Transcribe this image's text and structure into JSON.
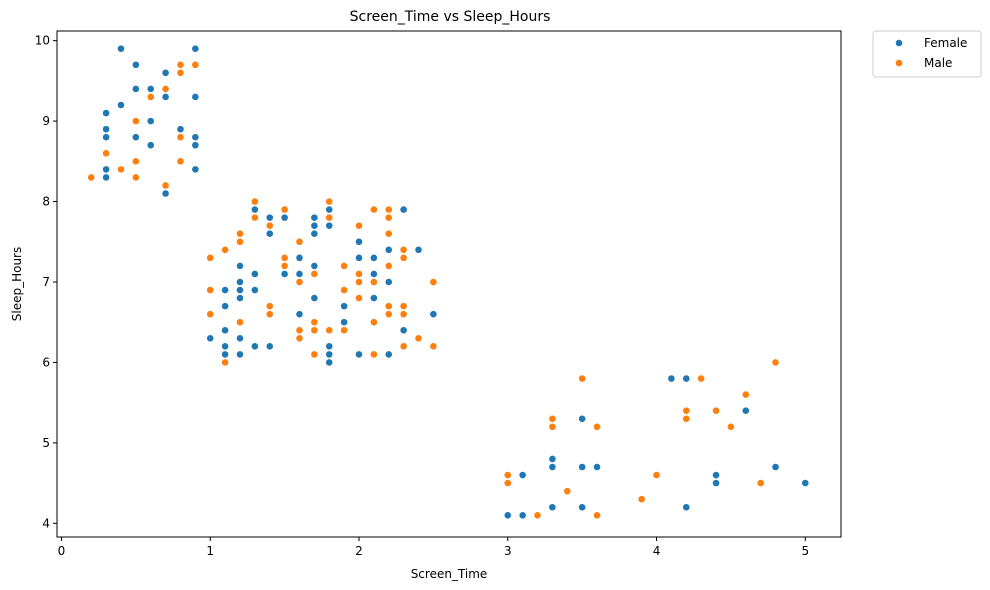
{
  "chart_data": {
    "type": "scatter",
    "title": "Screen_Time vs Sleep_Hours",
    "xlabel": "Screen_Time",
    "ylabel": "Sleep_Hours",
    "xlim": [
      -0.03,
      5.24
    ],
    "ylim": [
      3.83,
      10.12
    ],
    "xticks": [
      0,
      1,
      2,
      3,
      4,
      5
    ],
    "yticks": [
      4,
      5,
      6,
      7,
      8,
      9,
      10
    ],
    "grid": false,
    "legend_position": "outside-top-right",
    "series": [
      {
        "name": "Female",
        "color": "#1f77b4",
        "points": [
          [
            0.3,
            8.3
          ],
          [
            0.3,
            8.4
          ],
          [
            0.3,
            8.8
          ],
          [
            0.3,
            8.9
          ],
          [
            0.3,
            9.1
          ],
          [
            0.4,
            9.2
          ],
          [
            0.4,
            9.9
          ],
          [
            0.5,
            8.8
          ],
          [
            0.5,
            9.4
          ],
          [
            0.5,
            9.7
          ],
          [
            0.6,
            8.7
          ],
          [
            0.6,
            9.0
          ],
          [
            0.6,
            9.4
          ],
          [
            0.7,
            8.1
          ],
          [
            0.7,
            9.3
          ],
          [
            0.7,
            9.6
          ],
          [
            0.8,
            8.9
          ],
          [
            0.9,
            8.4
          ],
          [
            0.9,
            8.7
          ],
          [
            0.9,
            8.8
          ],
          [
            0.9,
            9.3
          ],
          [
            0.9,
            9.9
          ],
          [
            1.0,
            6.3
          ],
          [
            1.1,
            6.1
          ],
          [
            1.1,
            6.2
          ],
          [
            1.1,
            6.4
          ],
          [
            1.1,
            6.7
          ],
          [
            1.1,
            6.9
          ],
          [
            1.2,
            6.1
          ],
          [
            1.2,
            6.3
          ],
          [
            1.2,
            6.8
          ],
          [
            1.2,
            6.9
          ],
          [
            1.2,
            7.0
          ],
          [
            1.2,
            7.2
          ],
          [
            1.3,
            6.2
          ],
          [
            1.3,
            6.9
          ],
          [
            1.3,
            7.1
          ],
          [
            1.3,
            7.9
          ],
          [
            1.4,
            6.2
          ],
          [
            1.4,
            7.6
          ],
          [
            1.4,
            7.8
          ],
          [
            1.5,
            7.1
          ],
          [
            1.5,
            7.8
          ],
          [
            1.6,
            6.6
          ],
          [
            1.6,
            7.1
          ],
          [
            1.6,
            7.3
          ],
          [
            1.7,
            6.8
          ],
          [
            1.7,
            7.2
          ],
          [
            1.7,
            7.6
          ],
          [
            1.7,
            7.7
          ],
          [
            1.7,
            7.8
          ],
          [
            1.8,
            6.0
          ],
          [
            1.8,
            6.1
          ],
          [
            1.8,
            6.2
          ],
          [
            1.8,
            7.7
          ],
          [
            1.8,
            7.9
          ],
          [
            1.9,
            6.5
          ],
          [
            1.9,
            6.7
          ],
          [
            2.0,
            6.1
          ],
          [
            2.0,
            7.1
          ],
          [
            2.0,
            7.3
          ],
          [
            2.0,
            7.5
          ],
          [
            2.1,
            6.8
          ],
          [
            2.1,
            7.1
          ],
          [
            2.1,
            7.3
          ],
          [
            2.2,
            6.1
          ],
          [
            2.2,
            6.6
          ],
          [
            2.2,
            7.0
          ],
          [
            2.2,
            7.4
          ],
          [
            2.3,
            6.4
          ],
          [
            2.3,
            7.9
          ],
          [
            2.4,
            7.4
          ],
          [
            2.5,
            6.6
          ],
          [
            3.0,
            4.1
          ],
          [
            3.1,
            4.1
          ],
          [
            3.1,
            4.6
          ],
          [
            3.3,
            4.2
          ],
          [
            3.3,
            4.7
          ],
          [
            3.3,
            4.8
          ],
          [
            3.5,
            4.2
          ],
          [
            3.5,
            4.7
          ],
          [
            3.5,
            5.3
          ],
          [
            3.6,
            4.7
          ],
          [
            4.1,
            5.8
          ],
          [
            4.2,
            4.2
          ],
          [
            4.2,
            5.8
          ],
          [
            4.4,
            4.5
          ],
          [
            4.4,
            4.6
          ],
          [
            4.6,
            5.4
          ],
          [
            4.8,
            4.7
          ],
          [
            5.0,
            4.5
          ]
        ]
      },
      {
        "name": "Male",
        "color": "#ff7f0e",
        "points": [
          [
            0.2,
            8.3
          ],
          [
            0.3,
            8.6
          ],
          [
            0.4,
            8.4
          ],
          [
            0.5,
            8.3
          ],
          [
            0.5,
            8.5
          ],
          [
            0.5,
            9.0
          ],
          [
            0.6,
            9.3
          ],
          [
            0.7,
            8.2
          ],
          [
            0.7,
            9.4
          ],
          [
            0.8,
            8.5
          ],
          [
            0.8,
            8.8
          ],
          [
            0.8,
            9.6
          ],
          [
            0.8,
            9.7
          ],
          [
            0.9,
            9.7
          ],
          [
            1.0,
            6.6
          ],
          [
            1.0,
            6.9
          ],
          [
            1.0,
            7.3
          ],
          [
            1.1,
            6.0
          ],
          [
            1.1,
            7.4
          ],
          [
            1.2,
            6.5
          ],
          [
            1.2,
            7.5
          ],
          [
            1.2,
            7.6
          ],
          [
            1.3,
            7.8
          ],
          [
            1.3,
            8.0
          ],
          [
            1.4,
            6.6
          ],
          [
            1.4,
            6.7
          ],
          [
            1.4,
            7.7
          ],
          [
            1.5,
            7.2
          ],
          [
            1.5,
            7.3
          ],
          [
            1.5,
            7.9
          ],
          [
            1.6,
            6.3
          ],
          [
            1.6,
            6.4
          ],
          [
            1.6,
            7.0
          ],
          [
            1.6,
            7.5
          ],
          [
            1.7,
            6.1
          ],
          [
            1.7,
            6.4
          ],
          [
            1.7,
            6.5
          ],
          [
            1.7,
            7.1
          ],
          [
            1.8,
            6.4
          ],
          [
            1.8,
            7.8
          ],
          [
            1.8,
            8.0
          ],
          [
            1.9,
            6.4
          ],
          [
            1.9,
            6.9
          ],
          [
            1.9,
            7.2
          ],
          [
            2.0,
            6.8
          ],
          [
            2.0,
            7.0
          ],
          [
            2.0,
            7.1
          ],
          [
            2.0,
            7.7
          ],
          [
            2.1,
            6.1
          ],
          [
            2.1,
            6.5
          ],
          [
            2.1,
            7.0
          ],
          [
            2.1,
            7.9
          ],
          [
            2.2,
            6.6
          ],
          [
            2.2,
            6.7
          ],
          [
            2.2,
            7.2
          ],
          [
            2.2,
            7.6
          ],
          [
            2.2,
            7.8
          ],
          [
            2.2,
            7.9
          ],
          [
            2.3,
            6.2
          ],
          [
            2.3,
            6.6
          ],
          [
            2.3,
            6.7
          ],
          [
            2.3,
            7.3
          ],
          [
            2.3,
            7.4
          ],
          [
            2.4,
            6.3
          ],
          [
            2.5,
            6.2
          ],
          [
            2.5,
            7.0
          ],
          [
            3.0,
            4.5
          ],
          [
            3.0,
            4.6
          ],
          [
            3.2,
            4.1
          ],
          [
            3.3,
            5.2
          ],
          [
            3.3,
            5.3
          ],
          [
            3.4,
            4.4
          ],
          [
            3.5,
            5.8
          ],
          [
            3.6,
            4.1
          ],
          [
            3.6,
            5.2
          ],
          [
            3.9,
            4.3
          ],
          [
            4.0,
            4.6
          ],
          [
            4.2,
            5.3
          ],
          [
            4.2,
            5.4
          ],
          [
            4.3,
            5.8
          ],
          [
            4.4,
            5.4
          ],
          [
            4.5,
            5.2
          ],
          [
            4.6,
            5.6
          ],
          [
            4.7,
            4.5
          ],
          [
            4.8,
            6.0
          ]
        ]
      }
    ]
  }
}
